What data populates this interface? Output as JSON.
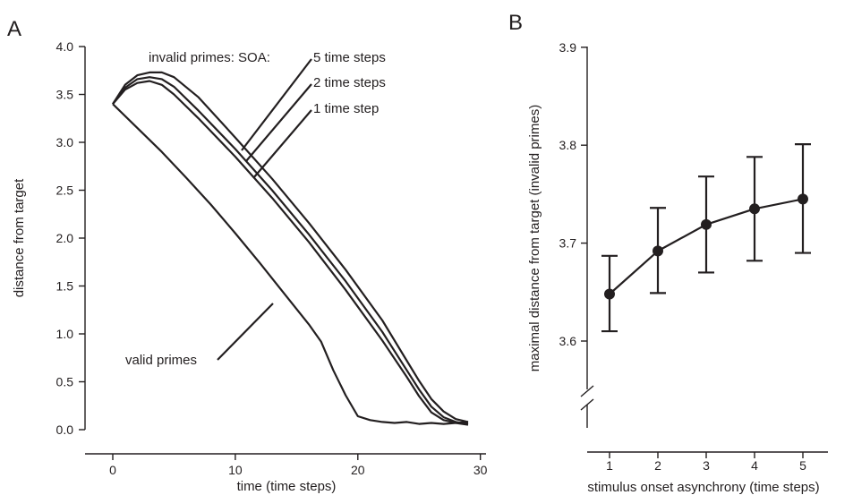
{
  "chart_data": [
    {
      "panel_label": "A",
      "type": "line",
      "xlabel": "time (time steps)",
      "ylabel": "distance from target",
      "xlim": [
        -3,
        33
      ],
      "ylim": [
        0,
        4.0
      ],
      "xticks": [
        0,
        10,
        20,
        30
      ],
      "yticks": [
        0.0,
        0.5,
        1.0,
        1.5,
        2.0,
        2.5,
        3.0,
        3.5,
        4.0
      ],
      "ytick_labels": [
        "0.0",
        "0.5",
        "1.0",
        "1.5",
        "2.0",
        "2.5",
        "3.0",
        "3.5",
        "4.0"
      ],
      "annotation_header": "invalid primes: SOA:",
      "series": [
        {
          "name": "valid primes",
          "x": [
            0,
            2,
            4,
            6,
            8,
            10,
            12,
            14,
            16,
            17,
            18,
            19,
            20,
            21,
            22,
            23,
            24,
            25,
            26,
            27,
            28,
            29
          ],
          "y": [
            3.4,
            3.15,
            2.9,
            2.63,
            2.35,
            2.05,
            1.74,
            1.42,
            1.1,
            0.92,
            0.62,
            0.36,
            0.14,
            0.1,
            0.08,
            0.07,
            0.08,
            0.06,
            0.07,
            0.06,
            0.07,
            0.08
          ]
        },
        {
          "name": "1 time step",
          "x": [
            0,
            1,
            2,
            3,
            4,
            5,
            7,
            10,
            13,
            16,
            19,
            22,
            24,
            25,
            26,
            27,
            28,
            29
          ],
          "y": [
            3.4,
            3.55,
            3.62,
            3.64,
            3.6,
            3.5,
            3.25,
            2.85,
            2.42,
            1.96,
            1.46,
            0.93,
            0.55,
            0.35,
            0.18,
            0.1,
            0.07,
            0.05
          ]
        },
        {
          "name": "2 time steps",
          "x": [
            0,
            1,
            2,
            3,
            4,
            5,
            7,
            10,
            13,
            16,
            19,
            22,
            24,
            25,
            26,
            27,
            28,
            29
          ],
          "y": [
            3.4,
            3.57,
            3.66,
            3.68,
            3.66,
            3.58,
            3.33,
            2.93,
            2.5,
            2.04,
            1.55,
            1.02,
            0.62,
            0.42,
            0.24,
            0.13,
            0.08,
            0.06
          ]
        },
        {
          "name": "5 time steps",
          "x": [
            0,
            1,
            2,
            3,
            4,
            5,
            7,
            10,
            13,
            16,
            19,
            22,
            24,
            25,
            26,
            27,
            28,
            29
          ],
          "y": [
            3.4,
            3.6,
            3.7,
            3.73,
            3.73,
            3.68,
            3.47,
            3.05,
            2.62,
            2.16,
            1.67,
            1.14,
            0.72,
            0.51,
            0.32,
            0.19,
            0.11,
            0.08
          ]
        }
      ]
    },
    {
      "panel_label": "B",
      "type": "line",
      "xlabel": "stimulus onset asynchrony (time steps)",
      "ylabel": "maximal distance from target (invalid primes)",
      "xlim": [
        0.5,
        5.5
      ],
      "ylim": [
        3.5,
        3.9
      ],
      "axis_break": true,
      "categories": [
        "1",
        "2",
        "3",
        "4",
        "5"
      ],
      "yticks": [
        3.6,
        3.7,
        3.8,
        3.9
      ],
      "ytick_labels": [
        "3.6",
        "3.7",
        "3.8",
        "3.9"
      ],
      "values": [
        3.648,
        3.692,
        3.719,
        3.735,
        3.745
      ],
      "err_low": [
        3.61,
        3.649,
        3.67,
        3.682,
        3.69
      ],
      "err_high": [
        3.687,
        3.736,
        3.768,
        3.788,
        3.801
      ]
    }
  ]
}
